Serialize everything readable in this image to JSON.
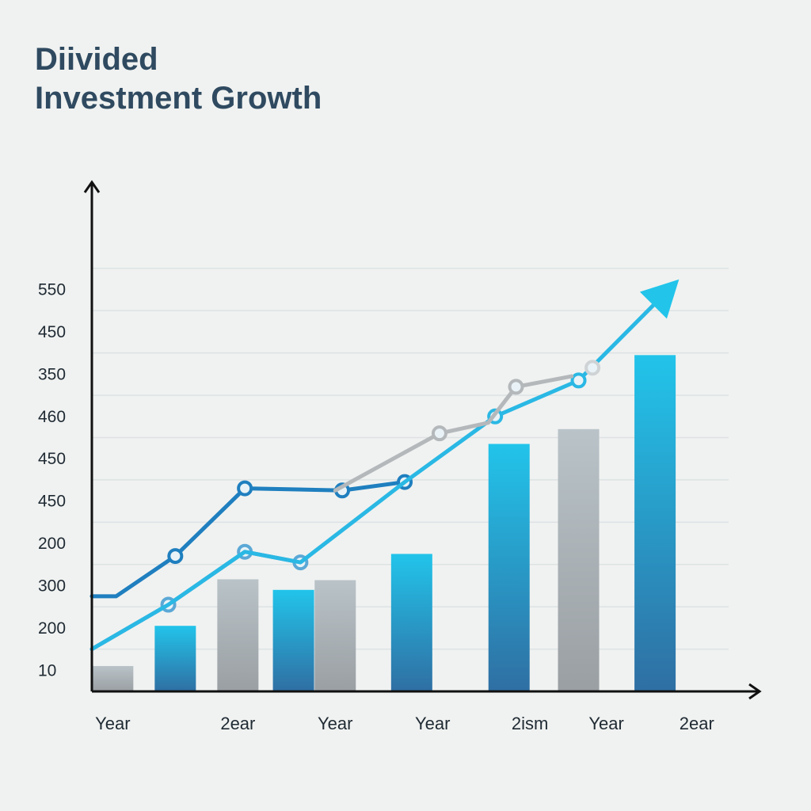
{
  "chart_data": {
    "type": "bar",
    "title_lines": [
      "Diivided",
      "Investment Growth"
    ],
    "xlabel": "",
    "ylabel": "",
    "ylim": [
      0,
      12
    ],
    "y_tick_labels": [
      "10",
      "200",
      "300",
      "200",
      "450",
      "450",
      "460",
      "350",
      "450",
      "550"
    ],
    "y_tick_positions": [
      0.5,
      1.5,
      2.5,
      3.5,
      4.5,
      5.5,
      6.5,
      7.5,
      8.5,
      9.5
    ],
    "x_tick_labels": [
      "Year",
      "2ear",
      "Year",
      "Year",
      "2ism",
      "Year",
      "2ear"
    ],
    "x_tick_positions": [
      0.3,
      2.1,
      3.5,
      4.9,
      6.3,
      7.4,
      8.7
    ],
    "xlim": [
      0,
      9.5
    ],
    "bars": {
      "name": "Bars",
      "x": [
        0.3,
        1.2,
        2.1,
        2.9,
        3.5,
        4.6,
        6.0,
        7.0,
        8.1
      ],
      "values": [
        0.6,
        1.55,
        2.65,
        2.4,
        2.63,
        3.25,
        5.85,
        6.2,
        7.95
      ],
      "colors": [
        "gray",
        "blue",
        "gray",
        "blue",
        "gray",
        "blue",
        "blue",
        "gray",
        "blue"
      ]
    },
    "series": [
      {
        "name": "Dark blue line",
        "color": "#1f7fbf",
        "x": [
          0,
          0.35,
          1.2,
          2.2,
          3.6,
          4.5
        ],
        "values": [
          2.25,
          2.25,
          3.2,
          4.8,
          4.75,
          4.95
        ],
        "markers": [
          false,
          false,
          true,
          true,
          true,
          true
        ]
      },
      {
        "name": "Light blue line",
        "color": "#5ba8d6",
        "x": [
          0,
          1.1,
          2.2,
          3.0
        ],
        "values": [
          1.0,
          2.05,
          3.3,
          3.05
        ],
        "markers": [
          false,
          true,
          true,
          true
        ]
      },
      {
        "name": "Cyan trend line",
        "color": "#2ab8e4",
        "x": [
          0,
          1.1,
          2.2,
          3.0,
          4.5,
          5.8,
          7.0,
          8.3
        ],
        "values": [
          1.0,
          2.05,
          3.3,
          3.05,
          4.95,
          6.5,
          7.35,
          9.5
        ],
        "markers": [
          false,
          false,
          false,
          false,
          false,
          true,
          true,
          false
        ],
        "arrow_end": true
      },
      {
        "name": "Gray line",
        "color": "#b4b8bb",
        "x": [
          3.5,
          5.0,
          5.7,
          6.1,
          6.9
        ],
        "values": [
          4.75,
          6.1,
          6.35,
          7.2,
          7.45
        ],
        "markers": [
          false,
          true,
          false,
          true,
          false
        ]
      },
      {
        "name": "Faint gray point",
        "color": "#cfd3d5",
        "x": [
          7.2
        ],
        "values": [
          7.65
        ],
        "markers": [
          true
        ]
      }
    ],
    "grid": true,
    "legend": "none"
  }
}
